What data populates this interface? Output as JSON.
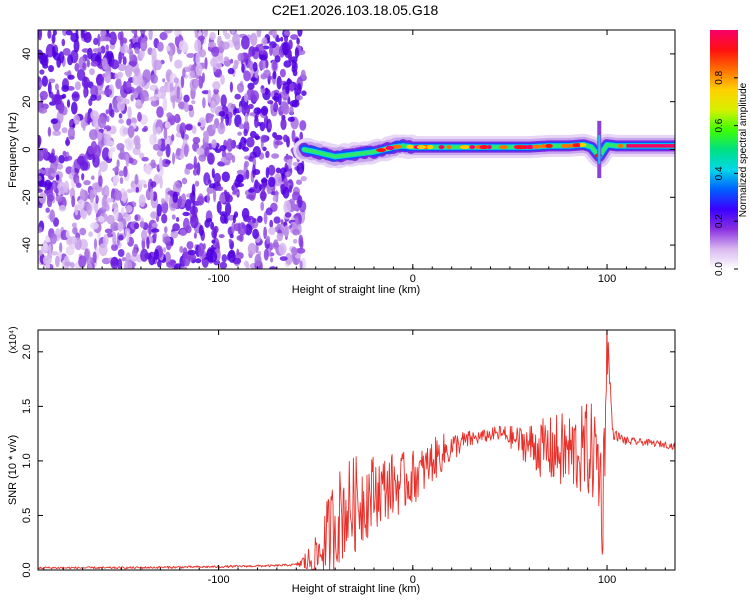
{
  "title": "C2E1.2026.103.18.05.G18",
  "chart_data": [
    {
      "type": "heatmap",
      "xlabel": "Height of straight line (km)",
      "ylabel": "Frequency (Hz)",
      "xlim": [
        -193,
        135
      ],
      "ylim": [
        -50,
        50
      ],
      "xticks": [
        -100,
        0,
        100
      ],
      "yticks": [
        -40,
        -20,
        0,
        20,
        40
      ],
      "noise_region_x": [
        -193,
        -56
      ],
      "signal_ridge": {
        "x": [
          -56,
          -50,
          -45,
          -40,
          -35,
          -30,
          -25,
          -20,
          -15,
          -10,
          -5,
          0,
          10,
          20,
          30,
          40,
          50,
          60,
          70,
          80,
          88,
          92,
          96,
          100,
          105,
          110,
          115,
          120,
          135
        ],
        "y": [
          0,
          -1,
          -2,
          -3,
          -2.5,
          -2,
          -1.5,
          -1,
          0,
          1,
          1.5,
          1,
          1,
          1,
          1,
          1,
          1,
          1,
          1.5,
          1.5,
          2,
          1,
          -3,
          2,
          1.5,
          1.5,
          1.5,
          1.5,
          1.5
        ]
      },
      "colorbar": {
        "label": "Normalized spectral amplitude",
        "range": [
          0.0,
          1.0
        ],
        "ticks": [
          0.0,
          0.2,
          0.4,
          0.6,
          0.8
        ],
        "tick_labels": [
          "0.0",
          "0.2",
          "0.4",
          "0.6",
          "0.8"
        ],
        "colors": [
          "#ffffff",
          "#d9b8f0",
          "#8a30e0",
          "#3a00ff",
          "#0060ff",
          "#00d8e8",
          "#00e080",
          "#40ff00",
          "#d8f000",
          "#ffd000",
          "#ff7000",
          "#ff1010",
          "#f8006a"
        ]
      }
    },
    {
      "type": "line",
      "xlabel": "Height of straight line (km)",
      "ylabel": "SNR (10 * v/v)",
      "y_multiplier": "(x10⁴)",
      "xlim": [
        -193,
        135
      ],
      "ylim": [
        0,
        2.2
      ],
      "xticks": [
        -100,
        0,
        100
      ],
      "yticks": [
        0.0,
        0.5,
        1.0,
        1.5,
        2.0
      ],
      "ytick_labels": [
        "0.0",
        "0.5",
        "1.0",
        "1.5",
        "2.0"
      ],
      "series": [
        {
          "color": "#e8302a",
          "x": [
            -193,
            -150,
            -100,
            -70,
            -60,
            -50,
            -45,
            -40,
            -35,
            -30,
            -25,
            -20,
            -15,
            -10,
            -5,
            0,
            5,
            10,
            15,
            20,
            25,
            30,
            35,
            40,
            45,
            50,
            55,
            60,
            65,
            70,
            75,
            80,
            85,
            90,
            95,
            98,
            100,
            103,
            110,
            120,
            130,
            135
          ],
          "y": [
            0.02,
            0.02,
            0.03,
            0.04,
            0.05,
            0.1,
            0.25,
            0.45,
            0.55,
            0.6,
            0.65,
            0.72,
            0.75,
            0.78,
            0.8,
            0.85,
            0.9,
            1.0,
            1.07,
            1.12,
            1.17,
            1.2,
            1.22,
            1.24,
            1.25,
            1.22,
            1.18,
            1.15,
            1.12,
            1.1,
            1.09,
            1.08,
            1.08,
            1.1,
            1.05,
            0.6,
            2.15,
            1.25,
            1.18,
            1.17,
            1.15,
            1.13
          ],
          "noise_amp": [
            0.01,
            0.01,
            0.01,
            0.01,
            0.01,
            0.2,
            0.35,
            0.45,
            0.45,
            0.45,
            0.4,
            0.35,
            0.3,
            0.3,
            0.28,
            0.25,
            0.22,
            0.2,
            0.18,
            0.14,
            0.1,
            0.08,
            0.06,
            0.06,
            0.08,
            0.1,
            0.14,
            0.2,
            0.26,
            0.3,
            0.35,
            0.38,
            0.4,
            0.45,
            0.45,
            0.6,
            0.3,
            0.05,
            0.04,
            0.03,
            0.03,
            0.03
          ]
        }
      ]
    }
  ]
}
